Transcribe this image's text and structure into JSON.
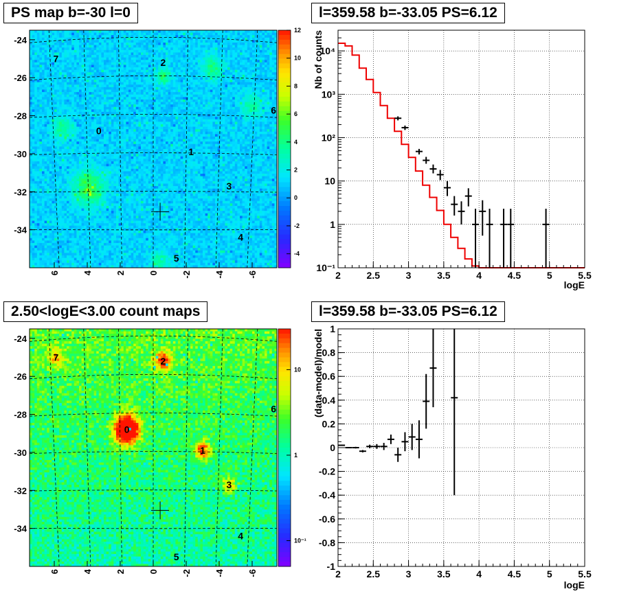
{
  "panels": {
    "ps_map": {
      "title": "PS map b=-30 l=0",
      "y_ticks": [
        "-24",
        "-26",
        "-28",
        "-30",
        "-32",
        "-34"
      ],
      "x_ticks": [
        "6",
        "4",
        "2",
        "0",
        "-2",
        "-4",
        "-6"
      ],
      "colorbar_ticks": [
        "12",
        "10",
        "8",
        "6",
        "4",
        "2",
        "0",
        "-2",
        "-4"
      ],
      "source_labels": [
        "0",
        "1",
        "2",
        "3",
        "4",
        "5",
        "6",
        "7"
      ]
    },
    "spectrum": {
      "title": "l=359.58 b=-33.05 PS=6.12",
      "ylabel": "Nb of counts",
      "xlabel": "logE",
      "x_ticks": [
        "2",
        "2.5",
        "3",
        "3.5",
        "4",
        "4.5",
        "5",
        "5.5"
      ],
      "y_ticks": [
        "10⁴",
        "10³",
        "10²",
        "10",
        "1",
        "10⁻¹"
      ]
    },
    "count_map": {
      "title": "2.50<logE<3.00 count maps",
      "y_ticks": [
        "-24",
        "-26",
        "-28",
        "-30",
        "-32",
        "-34"
      ],
      "x_ticks": [
        "6",
        "4",
        "2",
        "0",
        "-2",
        "-4",
        "-6"
      ],
      "colorbar_ticks": [
        "10",
        "1",
        "10⁻¹"
      ],
      "source_labels": [
        "0",
        "1",
        "2",
        "3",
        "4",
        "5",
        "6",
        "7"
      ]
    },
    "residual": {
      "title": "l=359.58 b=-33.05 PS=6.12",
      "ylabel": "(data-model)/model",
      "xlabel": "logE",
      "x_ticks": [
        "2",
        "2.5",
        "3",
        "3.5",
        "4",
        "4.5",
        "5",
        "5.5"
      ],
      "y_ticks": [
        "1",
        "0.8",
        "0.6",
        "0.4",
        "0.2",
        "0",
        "-0.2",
        "-0.4",
        "-0.6",
        "-0.8",
        "-1"
      ]
    }
  },
  "chart_data": [
    {
      "type": "heatmap",
      "title": "PS map b=-30 l=0",
      "xlim": [
        7.5,
        -7.5
      ],
      "ylim": [
        -36,
        -23.5
      ],
      "zlim": [
        -5,
        12
      ],
      "colorbar": true,
      "marker": {
        "l": -0.42,
        "b": -33.05
      },
      "sources": [
        {
          "label": "0",
          "l": 3.3,
          "b": -28.8
        },
        {
          "label": "1",
          "l": -2.3,
          "b": -29.9
        },
        {
          "label": "2",
          "l": -0.6,
          "b": -25.2
        },
        {
          "label": "3",
          "l": -4.6,
          "b": -31.7
        },
        {
          "label": "4",
          "l": -5.3,
          "b": -34.4
        },
        {
          "label": "5",
          "l": -1.4,
          "b": -35.5
        },
        {
          "label": "6",
          "l": -7.3,
          "b": -27.7
        },
        {
          "label": "7",
          "l": 5.9,
          "b": -25.0
        }
      ]
    },
    {
      "type": "line",
      "title": "l=359.58 b=-33.05 PS=6.12",
      "xlabel": "logE",
      "ylabel": "Nb of counts",
      "xlim": [
        2,
        5.5
      ],
      "ylim": [
        0.1,
        30000
      ],
      "yscale": "log",
      "grid": true,
      "model_bin_edges": [
        2.0,
        2.1,
        2.2,
        2.3,
        2.4,
        2.5,
        2.6,
        2.7,
        2.8,
        2.9,
        3.0,
        3.1,
        3.2,
        3.3,
        3.4,
        3.5,
        3.6,
        3.7,
        3.8,
        3.9,
        4.0,
        4.1,
        4.2,
        5.5
      ],
      "model_values": [
        15000,
        13000,
        8000,
        4000,
        2200,
        1100,
        550,
        280,
        140,
        70,
        35,
        17,
        8,
        4.2,
        2.1,
        1.0,
        0.5,
        0.28,
        0.16,
        0.11,
        0.1,
        0.1,
        0.1
      ],
      "data_points": [
        {
          "x": 2.85,
          "y": 280,
          "lo": 250,
          "hi": 310
        },
        {
          "x": 2.95,
          "y": 170,
          "lo": 150,
          "hi": 190
        },
        {
          "x": 3.15,
          "y": 48,
          "lo": 41,
          "hi": 55
        },
        {
          "x": 3.25,
          "y": 30,
          "lo": 25,
          "hi": 36
        },
        {
          "x": 3.35,
          "y": 19,
          "lo": 15,
          "hi": 24
        },
        {
          "x": 3.45,
          "y": 14,
          "lo": 10.5,
          "hi": 18
        },
        {
          "x": 3.55,
          "y": 7,
          "lo": 4.5,
          "hi": 10
        },
        {
          "x": 3.65,
          "y": 2.9,
          "lo": 1.6,
          "hi": 4.5
        },
        {
          "x": 3.75,
          "y": 2,
          "lo": 1.0,
          "hi": 3.4
        },
        {
          "x": 3.85,
          "y": 4.5,
          "lo": 2.6,
          "hi": 6.8
        },
        {
          "x": 3.95,
          "y": 1,
          "lo": 0.1,
          "hi": 2.3
        },
        {
          "x": 4.05,
          "y": 2,
          "lo": 0.55,
          "hi": 3.6
        },
        {
          "x": 4.15,
          "y": 1,
          "lo": 0.1,
          "hi": 2.3
        },
        {
          "x": 4.35,
          "y": 1,
          "lo": 0.1,
          "hi": 2.3
        },
        {
          "x": 4.45,
          "y": 1,
          "lo": 0.1,
          "hi": 2.3
        },
        {
          "x": 4.95,
          "y": 1,
          "lo": 0.1,
          "hi": 2.3
        }
      ],
      "series": [
        {
          "color": "#ee0000"
        },
        {
          "color": "#000000"
        }
      ]
    },
    {
      "type": "heatmap",
      "title": "2.50<logE<3.00 count maps",
      "xlim": [
        7.5,
        -7.5
      ],
      "ylim": [
        -36,
        -23.5
      ],
      "zscale": "log",
      "zlim": [
        0.05,
        30
      ],
      "colorbar": true,
      "marker": {
        "l": -0.42,
        "b": -33.05
      },
      "sources": [
        {
          "label": "0",
          "l": 1.6,
          "b": -28.8
        },
        {
          "label": "1",
          "l": -3.0,
          "b": -29.9
        },
        {
          "label": "2",
          "l": -0.6,
          "b": -25.2
        },
        {
          "label": "3",
          "l": -4.6,
          "b": -31.7
        },
        {
          "label": "4",
          "l": -5.3,
          "b": -34.4
        },
        {
          "label": "5",
          "l": -1.4,
          "b": -35.5
        },
        {
          "label": "6",
          "l": -7.3,
          "b": -27.7
        },
        {
          "label": "7",
          "l": 5.9,
          "b": -25.0
        }
      ]
    },
    {
      "type": "scatter",
      "title": "l=359.58 b=-33.05 PS=6.12",
      "xlabel": "logE",
      "ylabel": "(data-model)/model",
      "xlim": [
        2,
        5.5
      ],
      "ylim": [
        -1,
        1
      ],
      "grid": true,
      "points": [
        {
          "x": 2.05,
          "y": 0.02,
          "lo": 0.015,
          "hi": 0.025
        },
        {
          "x": 2.15,
          "y": 0.0,
          "lo": -0.005,
          "hi": 0.005
        },
        {
          "x": 2.25,
          "y": 0.0,
          "lo": -0.007,
          "hi": 0.007
        },
        {
          "x": 2.35,
          "y": -0.03,
          "lo": -0.04,
          "hi": -0.02
        },
        {
          "x": 2.45,
          "y": 0.01,
          "lo": -0.005,
          "hi": 0.025
        },
        {
          "x": 2.55,
          "y": 0.01,
          "lo": -0.01,
          "hi": 0.03
        },
        {
          "x": 2.65,
          "y": 0.01,
          "lo": -0.02,
          "hi": 0.04
        },
        {
          "x": 2.75,
          "y": 0.07,
          "lo": 0.03,
          "hi": 0.11
        },
        {
          "x": 2.85,
          "y": -0.06,
          "lo": -0.12,
          "hi": 0.0
        },
        {
          "x": 2.95,
          "y": 0.05,
          "lo": -0.03,
          "hi": 0.13
        },
        {
          "x": 3.05,
          "y": 0.09,
          "lo": -0.02,
          "hi": 0.2
        },
        {
          "x": 3.15,
          "y": 0.07,
          "lo": -0.09,
          "hi": 0.23
        },
        {
          "x": 3.25,
          "y": 0.39,
          "lo": 0.16,
          "hi": 0.62
        },
        {
          "x": 3.35,
          "y": 0.67,
          "lo": 0.34,
          "hi": 1.0
        },
        {
          "x": 3.65,
          "y": 0.42,
          "lo": -0.4,
          "hi": 1.0
        }
      ]
    }
  ]
}
